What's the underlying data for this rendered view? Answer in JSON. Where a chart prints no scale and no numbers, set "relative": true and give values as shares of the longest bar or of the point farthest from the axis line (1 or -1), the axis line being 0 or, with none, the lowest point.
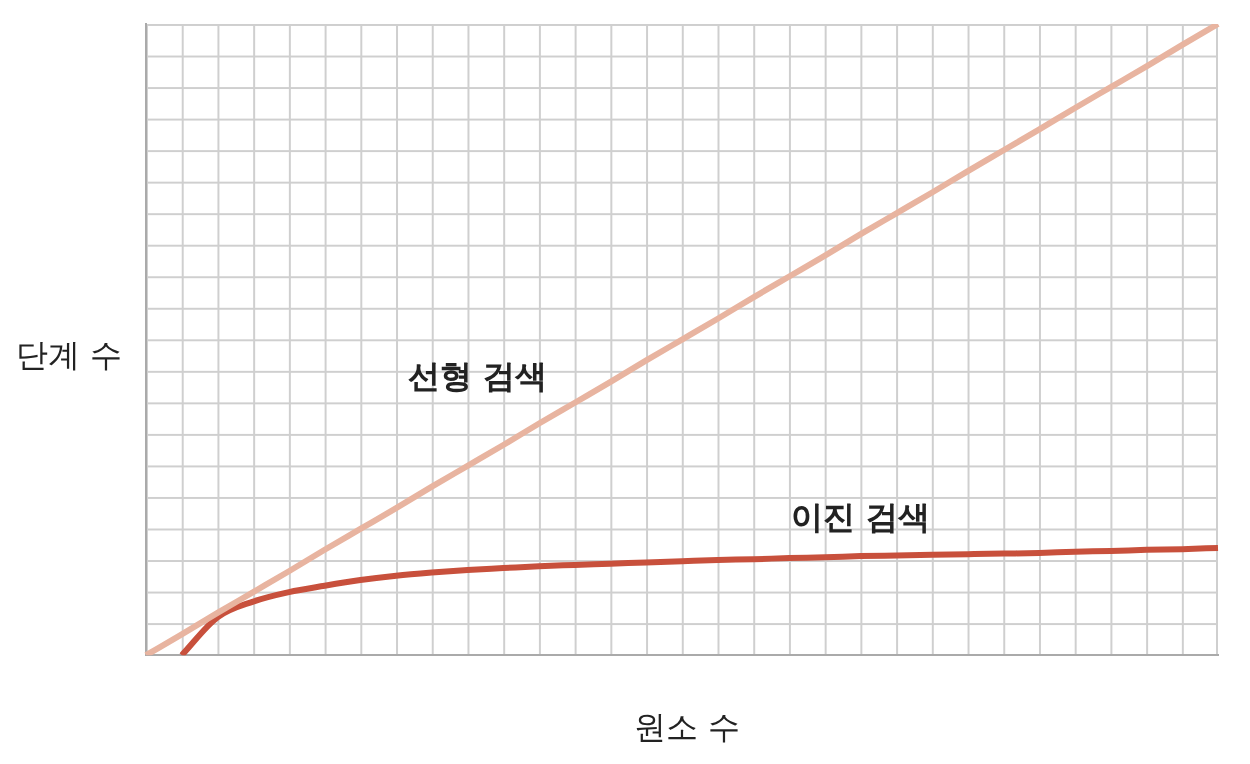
{
  "chart_data": {
    "type": "line",
    "relative": true,
    "xlabel": "원소 수",
    "ylabel": "단계 수",
    "legend": false,
    "categories": [
      null,
      null,
      null,
      null,
      null,
      null,
      null,
      null,
      null,
      null,
      null,
      null,
      null,
      null,
      null,
      null,
      null,
      null,
      null,
      null,
      null,
      null,
      null,
      null,
      null,
      null,
      null,
      null,
      null,
      null,
      null
    ],
    "series": [
      {
        "name": "선형 검색",
        "color": "#e8b4a0",
        "values": [
          0,
          0.033,
          0.067,
          0.1,
          0.133,
          0.167,
          0.2,
          0.233,
          0.267,
          0.3,
          0.333,
          0.367,
          0.4,
          0.433,
          0.467,
          0.5,
          0.533,
          0.567,
          0.6,
          0.633,
          0.667,
          0.7,
          0.733,
          0.767,
          0.8,
          0.833,
          0.867,
          0.9,
          0.933,
          0.967,
          1
        ]
      },
      {
        "name": "이진 검색",
        "color": "#c8503c",
        "values": [
          null,
          0,
          0.06,
          0.085,
          0.1,
          0.11,
          0.119,
          0.126,
          0.131,
          0.135,
          0.138,
          0.141,
          0.143,
          0.145,
          0.147,
          0.149,
          0.151,
          0.152,
          0.154,
          0.155,
          0.157,
          0.158,
          0.159,
          0.16,
          0.161,
          0.162,
          0.164,
          0.165,
          0.167,
          0.168,
          0.17
        ]
      }
    ]
  }
}
